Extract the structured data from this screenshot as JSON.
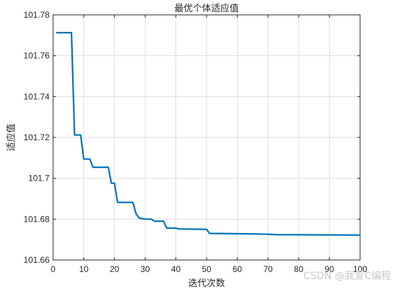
{
  "chart_data": {
    "type": "line",
    "title": "最优个体适应值",
    "xlabel": "迭代次数",
    "ylabel": "适应值",
    "xlim": [
      0,
      100
    ],
    "ylim": [
      101.66,
      101.78
    ],
    "x_ticks": [
      0,
      10,
      20,
      30,
      40,
      50,
      60,
      70,
      80,
      90,
      100
    ],
    "y_ticks": [
      101.66,
      101.68,
      101.7,
      101.72,
      101.74,
      101.76,
      101.78
    ],
    "y_tick_labels": [
      "101.66",
      "101.68",
      "101.7",
      "101.72",
      "101.74",
      "101.76",
      "101.78"
    ],
    "grid": true,
    "series": [
      {
        "color": "#0072BD",
        "points": [
          [
            1,
            101.7713
          ],
          [
            6,
            101.7713
          ],
          [
            7,
            101.7212
          ],
          [
            9,
            101.7212
          ],
          [
            10,
            101.7094
          ],
          [
            12,
            101.7094
          ],
          [
            13,
            101.7054
          ],
          [
            18,
            101.7054
          ],
          [
            19,
            101.6976
          ],
          [
            20,
            101.6976
          ],
          [
            21,
            101.6882
          ],
          [
            26,
            101.6882
          ],
          [
            27,
            101.6828
          ],
          [
            28,
            101.6805
          ],
          [
            30,
            101.68
          ],
          [
            32,
            101.68
          ],
          [
            33,
            101.679
          ],
          [
            36,
            101.679
          ],
          [
            37,
            101.6756
          ],
          [
            40,
            101.6756
          ],
          [
            41,
            101.6752
          ],
          [
            50,
            101.675
          ],
          [
            51,
            101.673
          ],
          [
            65,
            101.6728
          ],
          [
            70,
            101.6726
          ],
          [
            73,
            101.6724
          ],
          [
            85,
            101.6723
          ],
          [
            100,
            101.6722
          ]
        ]
      }
    ]
  },
  "watermark": "CSDN @我爱C编程"
}
